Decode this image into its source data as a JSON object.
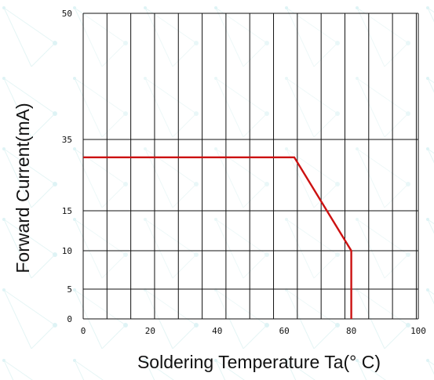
{
  "chart_data": {
    "type": "line",
    "xlabel": "Soldering Temperature Ta(°  C)",
    "ylabel": "Forward Current(mA)",
    "xlim": [
      0,
      100
    ],
    "x_ticks": [
      0,
      20,
      40,
      60,
      80,
      100
    ],
    "x_tick_labels": [
      "0",
      "20",
      "40",
      "60",
      "80",
      "100"
    ],
    "y_ticks": [
      0,
      5,
      10,
      15,
      35,
      50
    ],
    "y_tick_labels": [
      "0",
      "5",
      "10",
      "15",
      "35",
      "50"
    ],
    "y_scale": "piecewise (ticks 0, 5, 10, 15, 35, 50 at non-uniform spacing)",
    "grid": true,
    "vertical_grid_step": 7.1,
    "series": [
      {
        "color": "#cc1111",
        "points": [
          {
            "x": 0,
            "y": 30
          },
          {
            "x": 63,
            "y": 30
          },
          {
            "x": 80,
            "y": 10
          },
          {
            "x": 80,
            "y": 0
          }
        ]
      }
    ]
  }
}
